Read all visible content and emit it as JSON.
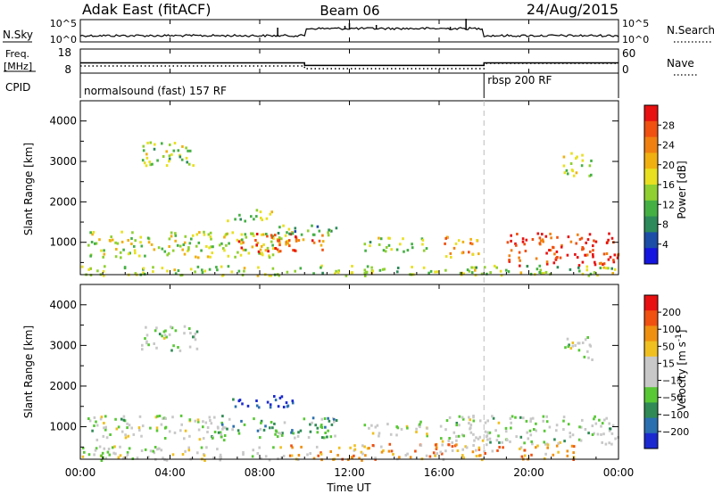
{
  "header": {
    "left": "Adak East (fitACF)",
    "center": "Beam 06",
    "right": "24/Aug/2015"
  },
  "strip": {
    "nsky_label": "N.Sky",
    "nsky_ticks": [
      "10^5",
      "10^0"
    ],
    "nsearch_label": "N.Search",
    "nsearch_ticks": [
      "10^5",
      "10^0"
    ],
    "freq_label": "Freq.",
    "freq_unit": "[MHz]",
    "freq_ticks": [
      "18",
      "8"
    ],
    "nave_label": "Nave",
    "nave_ticks": [
      "60",
      "0"
    ],
    "cpid_label": "CPID",
    "cpid_segments": [
      {
        "label": "normalsound (fast) 157 RF",
        "start_hour": 0,
        "end_hour": 18
      },
      {
        "label": "rbsp 200 RF",
        "start_hour": 18,
        "end_hour": 24
      }
    ],
    "freq_steps": [
      {
        "start_hour": 0,
        "end_hour": 10,
        "mhz": 13.5
      },
      {
        "start_hour": 10,
        "end_hour": 18,
        "mhz": 12.0
      },
      {
        "start_hour": 18,
        "end_hour": 24,
        "mhz": 13.5
      }
    ]
  },
  "chart_data": [
    {
      "type": "heatmap",
      "panel": "power",
      "ylabel": "Slant Range [km]",
      "yticks": [
        "4000",
        "3000",
        "2000",
        "1000"
      ],
      "ylim": [
        200,
        4500
      ],
      "xlim_hours": [
        0,
        24
      ],
      "colorbar": {
        "label": "Power [dB]",
        "ticks": [
          "28",
          "24",
          "20",
          "16",
          "12",
          "8",
          "4"
        ],
        "range": [
          0,
          31
        ],
        "colors": [
          "#1515e0",
          "#1c4ea8",
          "#2d8a5a",
          "#44b044",
          "#90d030",
          "#e8e020",
          "#f0b010",
          "#f08010",
          "#f05010",
          "#e81010"
        ]
      },
      "regions": [
        {
          "h0": 2.7,
          "h1": 5.2,
          "r0": 2900,
          "r1": 3500,
          "level": 0.45
        },
        {
          "h0": 0.3,
          "h1": 9.5,
          "r0": 650,
          "r1": 1300,
          "level": 0.5
        },
        {
          "h0": 6.5,
          "h1": 8.5,
          "r0": 1550,
          "r1": 1850,
          "level": 0.45
        },
        {
          "h0": 7.0,
          "h1": 11.0,
          "r0": 800,
          "r1": 1250,
          "level": 0.8
        },
        {
          "h0": 8.0,
          "h1": 11.5,
          "r0": 1200,
          "r1": 1450,
          "level": 0.35
        },
        {
          "h0": 12.5,
          "h1": 15.5,
          "r0": 800,
          "r1": 1150,
          "level": 0.45
        },
        {
          "h0": 16.2,
          "h1": 17.8,
          "r0": 650,
          "r1": 1200,
          "level": 0.7
        },
        {
          "h0": 19.0,
          "h1": 24.0,
          "r0": 450,
          "r1": 1250,
          "level": 0.9
        },
        {
          "h0": 21.5,
          "h1": 22.8,
          "r0": 2650,
          "r1": 3250,
          "level": 0.45
        },
        {
          "h0": 0.0,
          "h1": 24.0,
          "r0": 200,
          "r1": 450,
          "level": 0.45
        }
      ]
    },
    {
      "type": "heatmap",
      "panel": "velocity",
      "ylabel": "Slant Range [km]",
      "yticks": [
        "4000",
        "3000",
        "2000",
        "1000"
      ],
      "ylim": [
        200,
        4500
      ],
      "xlim_hours": [
        0,
        24
      ],
      "xticks": [
        "00:00",
        "04:00",
        "08:00",
        "12:00",
        "16:00",
        "20:00",
        "00:00"
      ],
      "xlabel": "Time UT",
      "colorbar": {
        "label": "Velocity [m s^-1]",
        "ticks": [
          "200",
          "100",
          "50",
          "15",
          "−15",
          "−50",
          "−100",
          "−200"
        ],
        "colors": [
          "#1a2ad0",
          "#2a6fb0",
          "#2f8a55",
          "#58c835",
          "#c8c8c8",
          "#c8c8c8",
          "#f0c020",
          "#f09010",
          "#f05010",
          "#e81010"
        ]
      },
      "regions": [
        {
          "h0": 2.7,
          "h1": 5.2,
          "r0": 2900,
          "r1": 3500,
          "level": 0.45
        },
        {
          "h0": 0.3,
          "h1": 6.5,
          "r0": 700,
          "r1": 1300,
          "level": 0.45
        },
        {
          "h0": 6.5,
          "h1": 9.5,
          "r0": 1500,
          "r1": 1800,
          "level": 0.05
        },
        {
          "h0": 6.0,
          "h1": 11.5,
          "r0": 750,
          "r1": 1250,
          "level": 0.3
        },
        {
          "h0": 12.5,
          "h1": 15.5,
          "r0": 800,
          "r1": 1150,
          "level": 0.45
        },
        {
          "h0": 16.0,
          "h1": 24.0,
          "r0": 600,
          "r1": 1300,
          "level": 0.45
        },
        {
          "h0": 9.0,
          "h1": 22.0,
          "r0": 200,
          "r1": 600,
          "level": 0.7
        },
        {
          "h0": 21.5,
          "h1": 22.8,
          "r0": 2650,
          "r1": 3250,
          "level": 0.45
        },
        {
          "h0": 0.0,
          "h1": 9.0,
          "r0": 200,
          "r1": 550,
          "level": 0.5
        }
      ]
    }
  ]
}
